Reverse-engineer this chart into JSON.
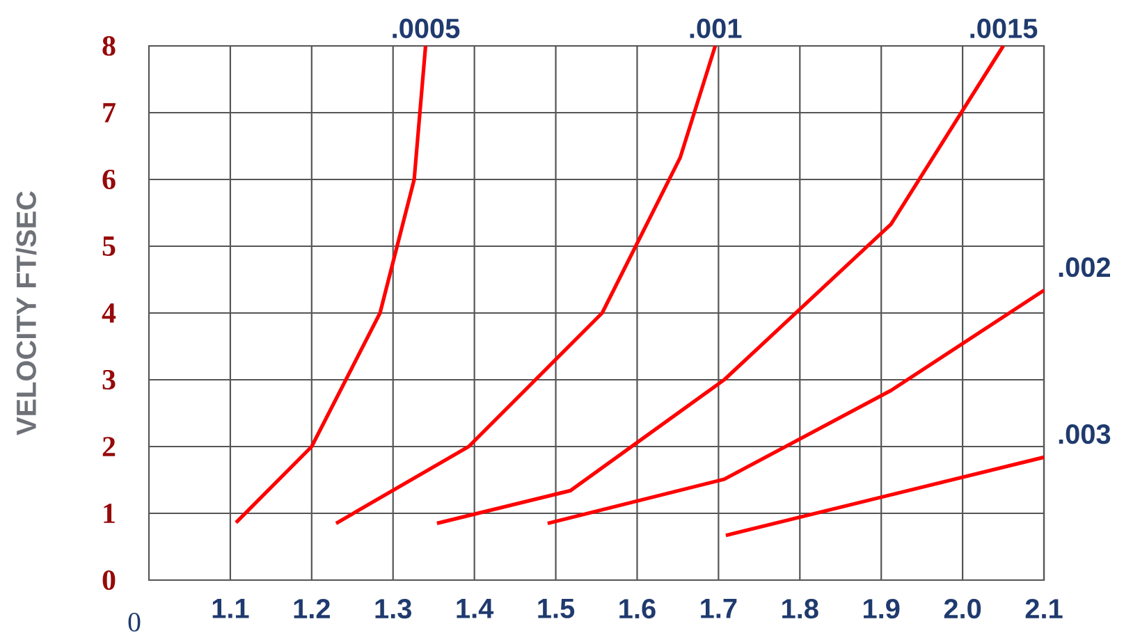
{
  "chart_data": {
    "type": "line",
    "ylabel": "VELOCITY FT/SEC",
    "xlim": [
      1.0,
      2.1
    ],
    "ylim": [
      0,
      8
    ],
    "annotations": [
      "0"
    ],
    "xticks": [
      {
        "value": 1.1,
        "label": "1.1"
      },
      {
        "value": 1.2,
        "label": "1.2"
      },
      {
        "value": 1.3,
        "label": "1.3"
      },
      {
        "value": 1.4,
        "label": "1.4"
      },
      {
        "value": 1.5,
        "label": "1.5"
      },
      {
        "value": 1.6,
        "label": "1.6"
      },
      {
        "value": 1.7,
        "label": "1.7"
      },
      {
        "value": 1.8,
        "label": "1.8"
      },
      {
        "value": 1.9,
        "label": "1.9"
      },
      {
        "value": 2.0,
        "label": "2.0"
      },
      {
        "value": 2.1,
        "label": "2.1"
      }
    ],
    "yticks": [
      0,
      1,
      2,
      3,
      4,
      5,
      6,
      7,
      8
    ],
    "grid": true,
    "series": [
      {
        "name": ".0005",
        "color": "#ff0000",
        "x": [
          1.107,
          1.2,
          1.284,
          1.326,
          1.34
        ],
        "values": [
          0.86,
          2.0,
          4.0,
          6.0,
          8.0
        ]
      },
      {
        "name": ".001",
        "color": "#ff0000",
        "x": [
          1.23,
          1.393,
          1.557,
          1.653,
          1.696
        ],
        "values": [
          0.85,
          2.0,
          4.0,
          6.33,
          8.0
        ]
      },
      {
        "name": ".0015",
        "color": "#ff0000",
        "x": [
          1.354,
          1.518,
          1.707,
          1.912,
          2.05
        ],
        "values": [
          0.85,
          1.34,
          3.0,
          5.33,
          8.0
        ]
      },
      {
        "name": ".002",
        "color": "#ff0000",
        "x": [
          1.49,
          1.707,
          1.912,
          2.1
        ],
        "values": [
          0.85,
          1.51,
          2.84,
          4.34
        ]
      },
      {
        "name": ".003",
        "color": "#ff0000",
        "x": [
          1.709,
          2.1
        ],
        "values": [
          0.67,
          1.84
        ]
      }
    ]
  }
}
